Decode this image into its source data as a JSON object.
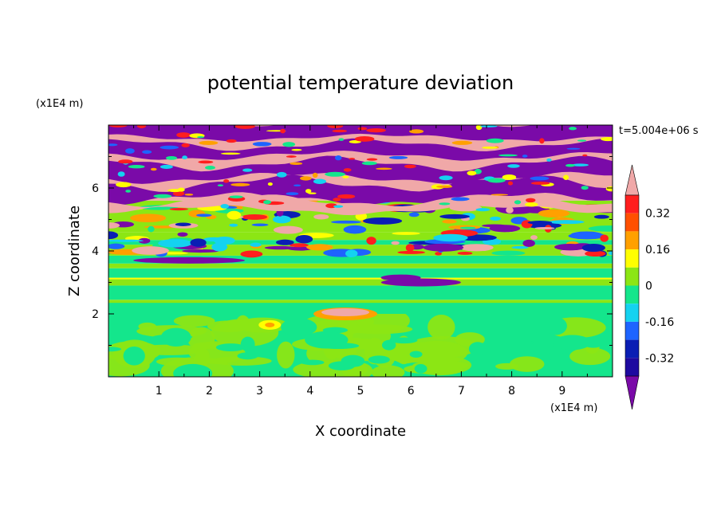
{
  "chart_data": {
    "type": "heatmap",
    "title": "potential temperature deviation",
    "xlabel": "X coordinate",
    "ylabel": "Z coordinate",
    "x_unit": "(x1E4 m)",
    "y_unit": "(x1E4 m)",
    "time_label": "t=5.004e+06 s",
    "xlim": [
      0,
      10
    ],
    "ylim": [
      0,
      8
    ],
    "x_ticks": [
      "1",
      "2",
      "3",
      "4",
      "5",
      "6",
      "7",
      "8",
      "9"
    ],
    "y_ticks": [
      "2",
      "4",
      "6"
    ],
    "colorbar": {
      "levels": [
        -0.4,
        -0.32,
        -0.24,
        -0.16,
        -0.08,
        0,
        0.08,
        0.16,
        0.24,
        0.32,
        0.4
      ],
      "labels": [
        "0.32",
        "0.16",
        "0",
        "-0.16",
        "-0.32"
      ],
      "colors": [
        "#7a0aa8",
        "#1e0aa0",
        "#0a1eb4",
        "#1e64ff",
        "#14d2f0",
        "#14e68c",
        "#8ce614",
        "#ffff00",
        "#ffa000",
        "#ff5000",
        "#ff1e1e",
        "#f0a8a8"
      ]
    },
    "field_bands": [
      {
        "z0": 0.0,
        "z1": 2.0,
        "value": -0.02,
        "note": "lower region: green / yellow-green mix"
      },
      {
        "z0": 2.0,
        "z1": 2.4,
        "value": -0.04,
        "note": "green band"
      },
      {
        "z0": 2.4,
        "z1": 2.6,
        "value": 0.05,
        "note": "yellow-green stripe"
      },
      {
        "z0": 2.6,
        "z1": 2.9,
        "value": -0.04,
        "note": "green band"
      },
      {
        "z0": 2.9,
        "z1": 3.1,
        "value": 0.05,
        "note": "yellow-green stripe"
      },
      {
        "z0": 3.1,
        "z1": 3.5,
        "value": -0.04,
        "note": "green band"
      },
      {
        "z0": 3.5,
        "z1": 4.0,
        "value": 0.05,
        "note": "mixed yellow-green"
      },
      {
        "z0": 4.0,
        "z1": 5.5,
        "value": 0.1,
        "note": "mixed multicolor"
      },
      {
        "z0": 5.5,
        "z1": 8.0,
        "value": 0.0,
        "note": "alternating purple and pink layers"
      }
    ]
  }
}
